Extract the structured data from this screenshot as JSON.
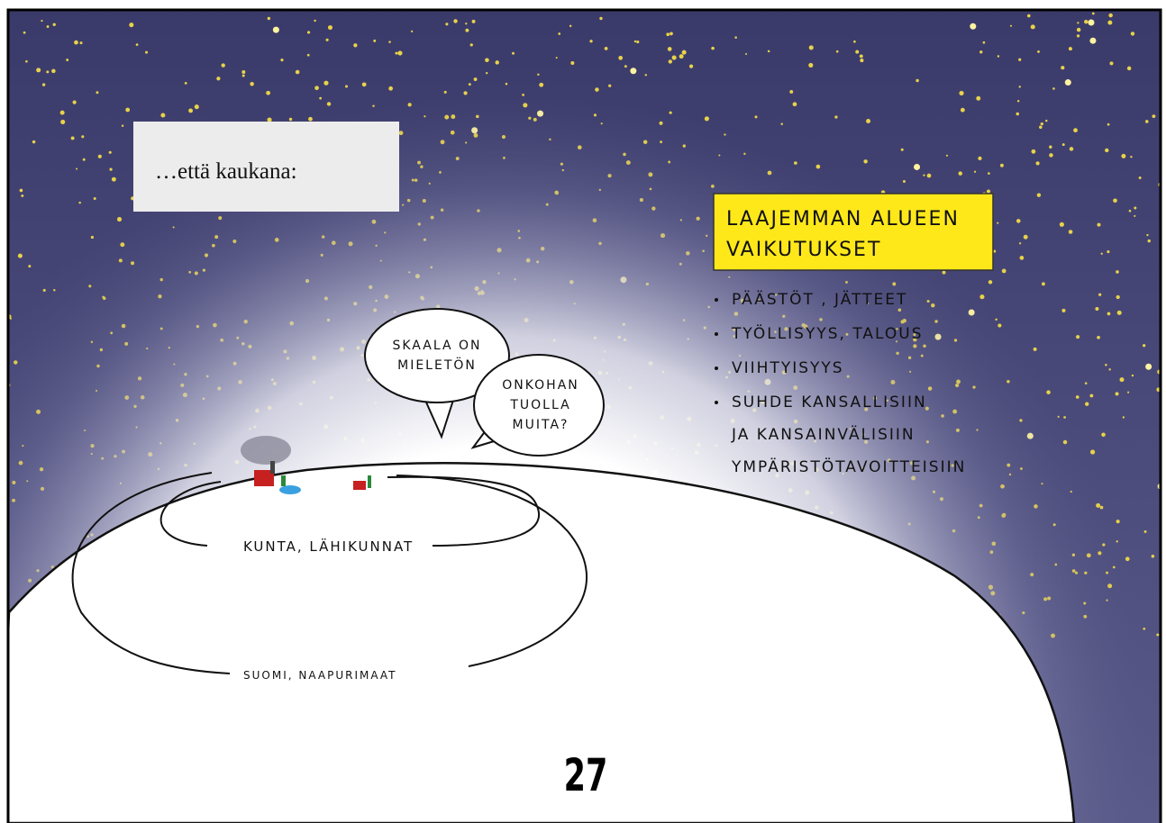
{
  "caption": "…että kaukana:",
  "heading": {
    "lines": [
      "LAAJEMMAN ALUEEN",
      "VAIKUTUKSET"
    ]
  },
  "bullets": [
    [
      "PÄÄSTÖT , JÄTTEET"
    ],
    [
      "TYÖLLISYYS, TALOUS"
    ],
    [
      "VIIHTYISYYS"
    ],
    [
      "SUHDE KANSALLISIIN",
      "JA KANSAINVÄLISIIN",
      "YMPÄRISTÖTAVOITTEISIIN"
    ]
  ],
  "speech_bubbles": [
    {
      "lines": [
        "SKAALA ON",
        "MIELETÖN"
      ]
    },
    {
      "lines": [
        "ONKOHAN",
        "TUOLLA",
        "MUITA?"
      ]
    }
  ],
  "zones": [
    "KUNTA, LÄHIKUNNAT",
    "SUOMI, NAAPURIMAAT"
  ],
  "page_number": 27
}
